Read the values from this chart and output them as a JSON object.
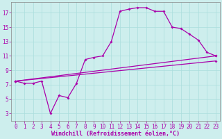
{
  "xlabel": "Windchill (Refroidissement éolien,°C)",
  "background_color": "#cdeeed",
  "grid_color": "#aadddd",
  "line_color": "#aa00aa",
  "marker": "D",
  "markersize": 2.0,
  "linewidth": 0.9,
  "xlim": [
    -0.5,
    23.5
  ],
  "ylim": [
    2.0,
    18.5
  ],
  "xticks": [
    0,
    1,
    2,
    3,
    4,
    5,
    6,
    7,
    8,
    9,
    10,
    11,
    12,
    13,
    14,
    15,
    16,
    17,
    18,
    19,
    20,
    21,
    22,
    23
  ],
  "yticks": [
    3,
    5,
    7,
    9,
    11,
    13,
    15,
    17
  ],
  "line1_x": [
    0,
    1,
    2,
    3,
    4,
    5,
    6,
    7,
    8,
    9,
    10,
    11,
    12,
    13,
    14,
    15,
    16,
    17,
    18,
    19,
    20,
    21,
    22,
    23
  ],
  "line1_y": [
    7.5,
    7.2,
    7.2,
    7.5,
    3.0,
    5.5,
    5.2,
    7.2,
    10.5,
    10.8,
    11.0,
    13.0,
    17.2,
    17.5,
    17.7,
    17.7,
    17.2,
    17.2,
    15.0,
    14.8,
    14.0,
    13.2,
    11.5,
    11.0
  ],
  "line2_x": [
    0,
    23
  ],
  "line2_y": [
    7.5,
    11.0
  ],
  "line3_x": [
    0,
    23
  ],
  "line3_y": [
    7.5,
    10.3
  ],
  "tick_fontsize": 5.5,
  "label_fontsize": 6.0
}
